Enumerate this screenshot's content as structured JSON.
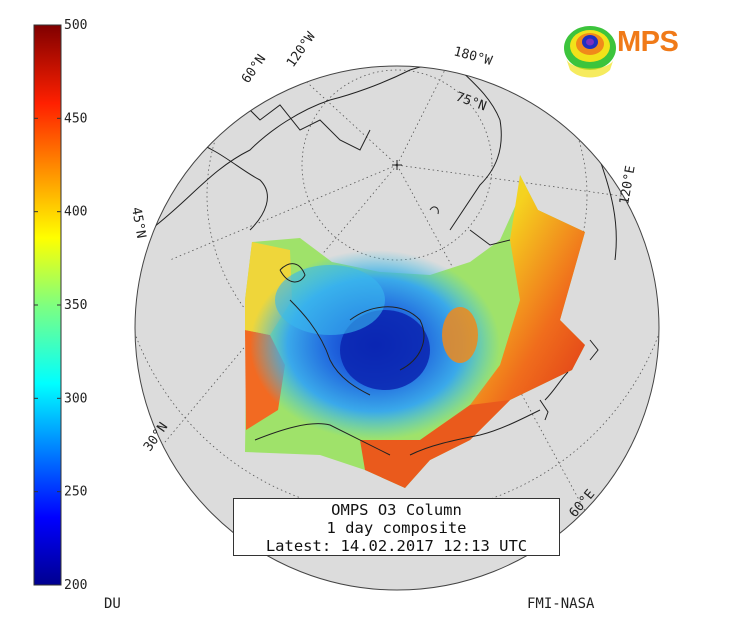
{
  "colorbar": {
    "tick_labels": [
      "500",
      "450",
      "400",
      "350",
      "300",
      "250",
      "200"
    ],
    "min": 200,
    "max": 500,
    "unit": "DU"
  },
  "map": {
    "projection": "orthographic-north-polar",
    "parallel_labels": [
      "60°N",
      "75°N",
      "45°N",
      "30°N"
    ],
    "meridian_labels": [
      "120°W",
      "180°W",
      "120°E",
      "60°E"
    ],
    "ozone_field_colors": {
      "low": "#1a47c9",
      "mid": "#41c8e0",
      "high": "#e8401c"
    }
  },
  "title_box": {
    "line1": "OMPS O3 Column",
    "line2": "1 day composite",
    "line3": "Latest: 14.02.2017 12:13 UTC"
  },
  "footer": {
    "unit_label": "DU",
    "credit": "FMI-NASA"
  },
  "logo": {
    "text": "MPS",
    "accent": "#f07a18"
  }
}
